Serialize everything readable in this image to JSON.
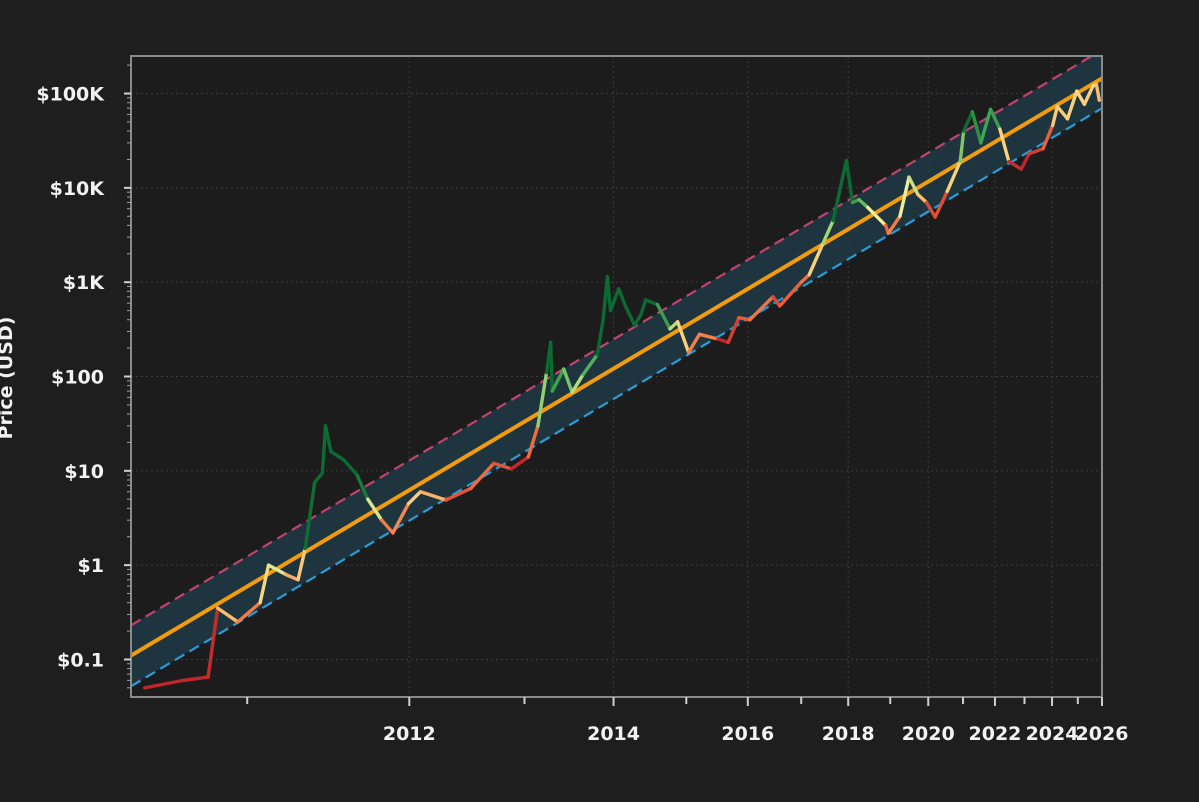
{
  "chart_data": {
    "type": "line",
    "title": "",
    "xlabel": "",
    "ylabel": "Price (USD)",
    "x_scale": "log (days since genesis)",
    "y_scale": "log",
    "grid": true,
    "legend": "none",
    "xlim": [
      "2010-07",
      "2026-01"
    ],
    "ylim": [
      0.04,
      250000
    ],
    "y_ticks": [
      {
        "value": 0.1,
        "label": "$0.1"
      },
      {
        "value": 1,
        "label": "$1"
      },
      {
        "value": 10,
        "label": "$10"
      },
      {
        "value": 100,
        "label": "$100"
      },
      {
        "value": 1000,
        "label": "$1K"
      },
      {
        "value": 10000,
        "label": "$10K"
      },
      {
        "value": 100000,
        "label": "$100K"
      }
    ],
    "x_tick_labels": [
      "2012",
      "2014",
      "2016",
      "2018",
      "2020",
      "2022",
      "2024",
      "2026"
    ],
    "colors": {
      "background": "#1e1e1e",
      "plot_background": "#1c1c1c",
      "band_fill": "#1f3a45",
      "fair_value_line": "#f29b0c",
      "upper_band_line": "#c2436b",
      "lower_band_line": "#2a9cd8",
      "price_gradient": [
        "#c0262b",
        "#f26a3c",
        "#fdc070",
        "#f4ee9b",
        "#9fd672",
        "#3fa64f",
        "#0b6b33"
      ]
    },
    "series": [
      {
        "role": "price",
        "colored_by": "position within band (red = low, green = high)",
        "points": [
          [
            "2010-07-20",
            0.05
          ],
          [
            "2010-09-15",
            0.06
          ],
          [
            "2010-10-25",
            0.065
          ],
          [
            "2010-11-10",
            0.35
          ],
          [
            "2010-12-15",
            0.25
          ],
          [
            "2011-01-25",
            0.4
          ],
          [
            "2011-02-10",
            1.0
          ],
          [
            "2011-03-15",
            0.8
          ],
          [
            "2011-04-10",
            0.7
          ],
          [
            "2011-04-25",
            1.5
          ],
          [
            "2011-05-15",
            7.5
          ],
          [
            "2011-06-01",
            9.5
          ],
          [
            "2011-06-08",
            30
          ],
          [
            "2011-06-20",
            16
          ],
          [
            "2011-07-20",
            13
          ],
          [
            "2011-08-20",
            9
          ],
          [
            "2011-09-15",
            5
          ],
          [
            "2011-10-20",
            3
          ],
          [
            "2011-11-18",
            2.2
          ],
          [
            "2011-12-30",
            4.5
          ],
          [
            "2012-02-01",
            6
          ],
          [
            "2012-04-15",
            4.9
          ],
          [
            "2012-07-01",
            6.5
          ],
          [
            "2012-09-15",
            12
          ],
          [
            "2012-11-15",
            10.5
          ],
          [
            "2013-01-15",
            14
          ],
          [
            "2013-02-20",
            30
          ],
          [
            "2013-03-25",
            110
          ],
          [
            "2013-04-10",
            230
          ],
          [
            "2013-04-16",
            70
          ],
          [
            "2013-06-01",
            120
          ],
          [
            "2013-07-05",
            68
          ],
          [
            "2013-08-20",
            105
          ],
          [
            "2013-10-20",
            170
          ],
          [
            "2013-11-15",
            400
          ],
          [
            "2013-12-04",
            1150
          ],
          [
            "2013-12-18",
            500
          ],
          [
            "2014-01-25",
            850
          ],
          [
            "2014-02-25",
            560
          ],
          [
            "2014-04-10",
            350
          ],
          [
            "2014-05-10",
            450
          ],
          [
            "2014-06-03",
            650
          ],
          [
            "2014-08-01",
            580
          ],
          [
            "2014-10-05",
            320
          ],
          [
            "2014-11-15",
            380
          ],
          [
            "2015-01-14",
            180
          ],
          [
            "2015-03-15",
            280
          ],
          [
            "2015-07-01",
            250
          ],
          [
            "2015-09-01",
            230
          ],
          [
            "2015-11-05",
            420
          ],
          [
            "2016-01-15",
            400
          ],
          [
            "2016-06-15",
            700
          ],
          [
            "2016-08-01",
            560
          ],
          [
            "2017-01-01",
            1000
          ],
          [
            "2017-03-01",
            1200
          ],
          [
            "2017-06-15",
            2600
          ],
          [
            "2017-09-01",
            4500
          ],
          [
            "2017-12-17",
            19500
          ],
          [
            "2018-02-06",
            7000
          ],
          [
            "2018-04-01",
            7500
          ],
          [
            "2018-06-15",
            6200
          ],
          [
            "2018-11-20",
            4000
          ],
          [
            "2018-12-15",
            3300
          ],
          [
            "2019-04-01",
            5000
          ],
          [
            "2019-06-26",
            13000
          ],
          [
            "2019-09-20",
            8500
          ],
          [
            "2019-12-15",
            7000
          ],
          [
            "2020-03-12",
            4900
          ],
          [
            "2020-07-15",
            9200
          ],
          [
            "2020-12-01",
            19000
          ],
          [
            "2021-01-08",
            40000
          ],
          [
            "2021-04-14",
            64000
          ],
          [
            "2021-07-20",
            30000
          ],
          [
            "2021-11-10",
            68000
          ],
          [
            "2022-03-01",
            42000
          ],
          [
            "2022-06-18",
            19000
          ],
          [
            "2022-11-21",
            15800
          ],
          [
            "2023-03-01",
            23000
          ],
          [
            "2023-09-01",
            26000
          ],
          [
            "2024-01-10",
            46000
          ],
          [
            "2024-03-14",
            73000
          ],
          [
            "2024-08-05",
            54000
          ],
          [
            "2024-12-17",
            106000
          ],
          [
            "2025-04-08",
            77000
          ],
          [
            "2025-08-15",
            120000
          ],
          [
            "2025-10-06",
            125000
          ],
          [
            "2025-11-20",
            85000
          ]
        ]
      },
      {
        "role": "fair_value",
        "line_style": "solid",
        "points": [
          [
            "2010-07-01",
            0.11
          ],
          [
            "2026-01-01",
            145000
          ]
        ]
      },
      {
        "role": "upper_band",
        "line_style": "dashed",
        "points": [
          [
            "2010-07-01",
            0.23
          ],
          [
            "2026-01-01",
            290000
          ]
        ]
      },
      {
        "role": "lower_band",
        "line_style": "dashed",
        "points": [
          [
            "2010-07-01",
            0.052
          ],
          [
            "2026-01-01",
            70000
          ]
        ]
      }
    ]
  }
}
